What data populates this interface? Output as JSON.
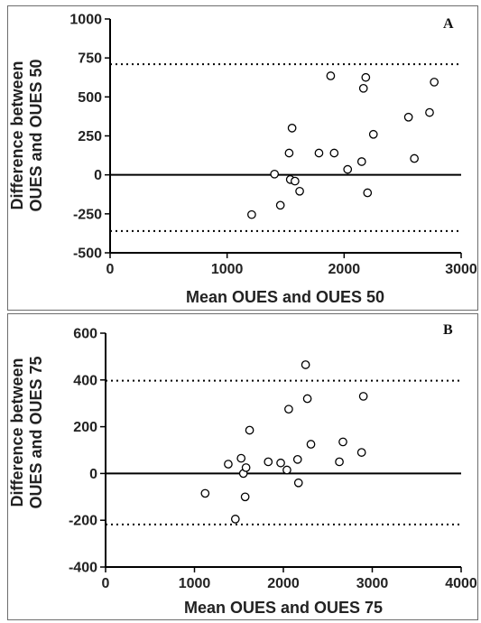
{
  "chart_data": [
    {
      "type": "scatter",
      "panel_label": "A",
      "xlabel": "Mean OUES and OUES 50",
      "ylabel_lines": [
        "Difference between",
        "OUES and OUES 50"
      ],
      "xlim": [
        0,
        3000
      ],
      "ylim": [
        -500,
        1000
      ],
      "x_ticks": [
        0,
        1000,
        2000,
        3000
      ],
      "y_ticks": [
        -500,
        -250,
        0,
        250,
        500,
        750,
        1000
      ],
      "reference_lines": {
        "mean": 0,
        "upper_limit": 710,
        "lower_limit": -360
      },
      "grid": false,
      "points": [
        {
          "x": 1210,
          "y": -255
        },
        {
          "x": 1405,
          "y": 5
        },
        {
          "x": 1455,
          "y": -195
        },
        {
          "x": 1530,
          "y": 140
        },
        {
          "x": 1540,
          "y": -30
        },
        {
          "x": 1555,
          "y": 300
        },
        {
          "x": 1580,
          "y": -40
        },
        {
          "x": 1620,
          "y": -105
        },
        {
          "x": 1785,
          "y": 140
        },
        {
          "x": 1885,
          "y": 635
        },
        {
          "x": 1915,
          "y": 140
        },
        {
          "x": 2030,
          "y": 35
        },
        {
          "x": 2150,
          "y": 85
        },
        {
          "x": 2165,
          "y": 555
        },
        {
          "x": 2185,
          "y": 625
        },
        {
          "x": 2200,
          "y": -115
        },
        {
          "x": 2250,
          "y": 260
        },
        {
          "x": 2550,
          "y": 370
        },
        {
          "x": 2600,
          "y": 105
        },
        {
          "x": 2730,
          "y": 400
        },
        {
          "x": 2770,
          "y": 595
        }
      ]
    },
    {
      "type": "scatter",
      "panel_label": "B",
      "xlabel": "Mean OUES and OUES 75",
      "ylabel_lines": [
        "Difference between",
        "OUES and OUES 75"
      ],
      "xlim": [
        0,
        4000
      ],
      "ylim": [
        -400,
        600
      ],
      "x_ticks": [
        0,
        1000,
        2000,
        3000,
        4000
      ],
      "y_ticks": [
        -400,
        -200,
        0,
        200,
        400,
        600
      ],
      "reference_lines": {
        "mean": 0,
        "upper_limit": 397,
        "lower_limit": -218
      },
      "grid": false,
      "points": [
        {
          "x": 1120,
          "y": -85
        },
        {
          "x": 1380,
          "y": 40
        },
        {
          "x": 1460,
          "y": -195
        },
        {
          "x": 1525,
          "y": 65
        },
        {
          "x": 1550,
          "y": 0
        },
        {
          "x": 1570,
          "y": -100
        },
        {
          "x": 1580,
          "y": 25
        },
        {
          "x": 1620,
          "y": 185
        },
        {
          "x": 1830,
          "y": 50
        },
        {
          "x": 1970,
          "y": 45
        },
        {
          "x": 2040,
          "y": 15
        },
        {
          "x": 2060,
          "y": 275
        },
        {
          "x": 2160,
          "y": 60
        },
        {
          "x": 2170,
          "y": -40
        },
        {
          "x": 2250,
          "y": 465
        },
        {
          "x": 2270,
          "y": 320
        },
        {
          "x": 2310,
          "y": 125
        },
        {
          "x": 2630,
          "y": 50
        },
        {
          "x": 2670,
          "y": 135
        },
        {
          "x": 2880,
          "y": 90
        },
        {
          "x": 2900,
          "y": 330
        }
      ]
    }
  ]
}
